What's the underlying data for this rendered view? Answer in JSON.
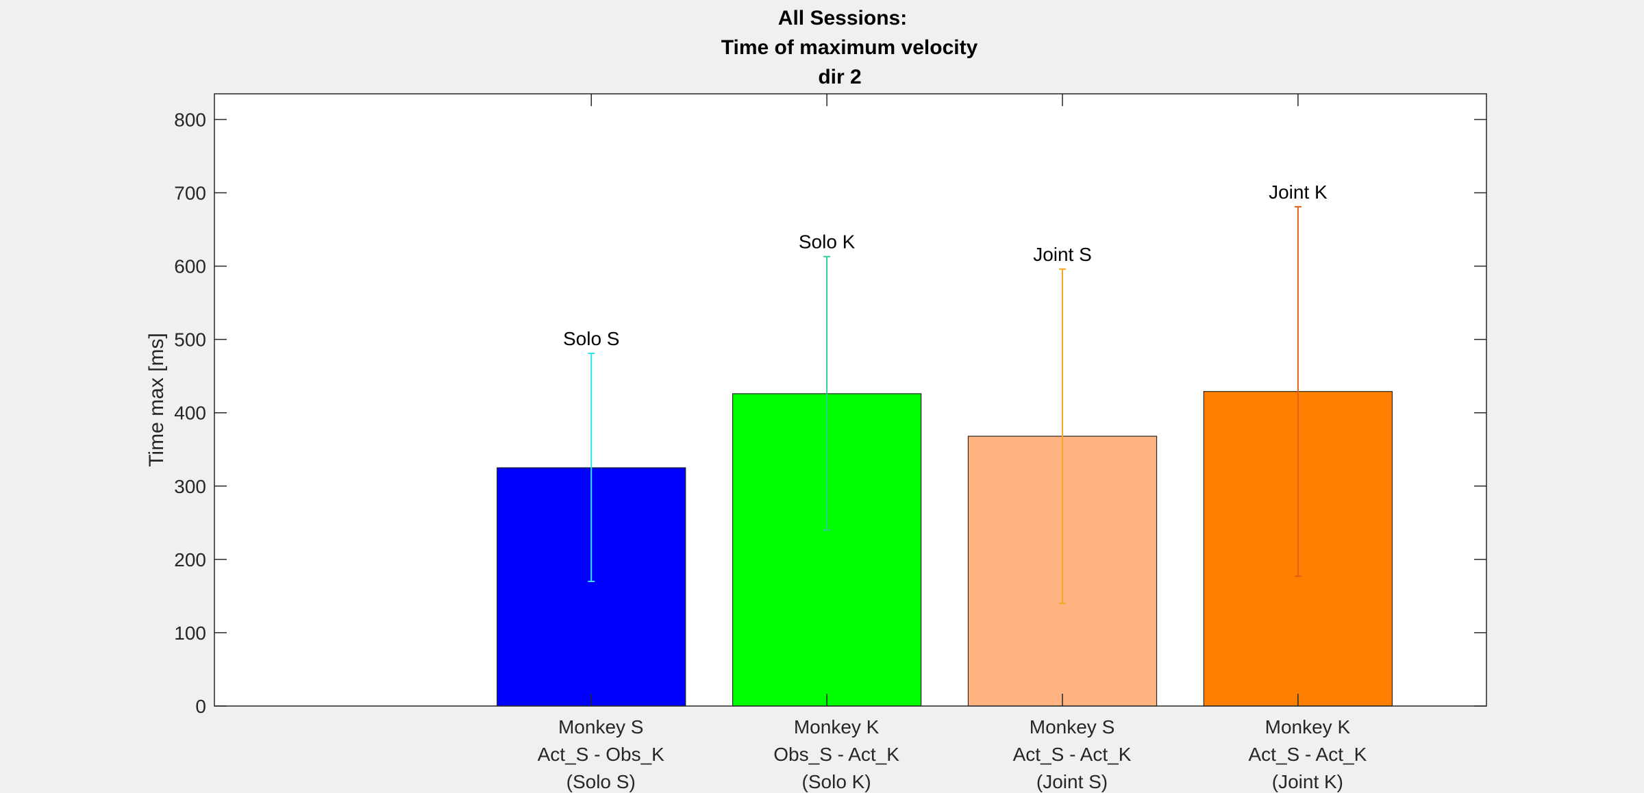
{
  "chart_data": {
    "type": "bar",
    "title": [
      "All Sessions:",
      "Time of maximum velocity",
      "dir 2"
    ],
    "xlabel": "",
    "ylabel": "Time max [ms]",
    "xlim": [
      0.2,
      5.6
    ],
    "ylim": [
      0,
      835
    ],
    "yticks": [
      0,
      100,
      200,
      300,
      400,
      500,
      600,
      700,
      800
    ],
    "x": [
      1.8,
      2.8,
      3.8,
      4.8
    ],
    "categories": [
      [
        "Monkey S",
        "Act_S - Obs_K",
        "(Solo S)"
      ],
      [
        "Monkey K",
        "Obs_S - Act_K",
        "(Solo K)"
      ],
      [
        "Monkey S",
        "Act_S - Act_K",
        "(Joint S)"
      ],
      [
        "Monkey K",
        "Act_S - Act_K",
        "(Joint K)"
      ]
    ],
    "values": [
      325,
      426,
      368,
      429
    ],
    "error_low": [
      170,
      240,
      140,
      177
    ],
    "error_high": [
      481,
      613,
      596,
      681
    ],
    "bar_labels": [
      "Solo S",
      "Solo K",
      "Joint S",
      "Joint K"
    ],
    "bar_colors": [
      "#0000ff",
      "#00ff00",
      "#ffb482",
      "#ff7f00"
    ],
    "errorbar_colors": [
      "#33e0ee",
      "#33cc99",
      "#f5a623",
      "#e0601a"
    ],
    "grid": false,
    "legend": "none"
  }
}
